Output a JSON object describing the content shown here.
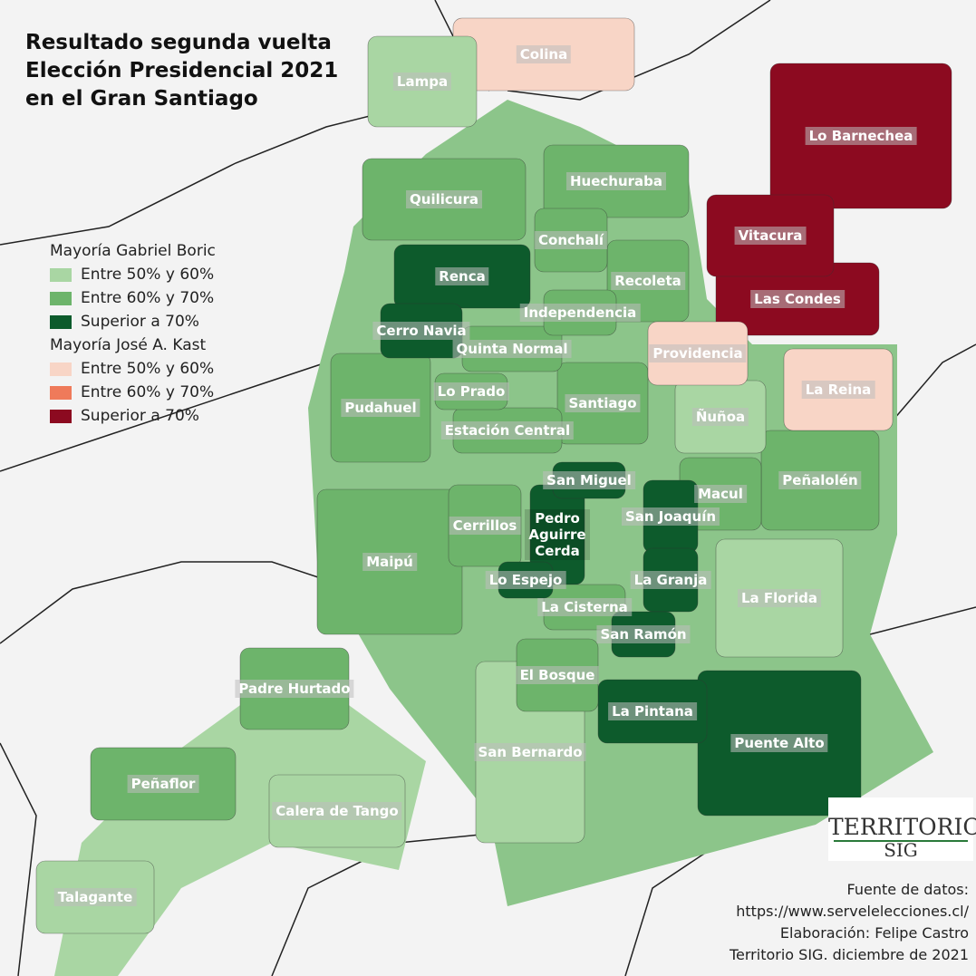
{
  "title_lines": [
    "Resultado segunda vuelta",
    "Elección Presidencial 2021",
    "en el Gran Santiago"
  ],
  "legend": {
    "groups": [
      {
        "heading": "Mayoría Gabriel Boric",
        "items": [
          {
            "label": "Entre 50% y 60%",
            "color": "#a9d6a3"
          },
          {
            "label": "Entre 60% y 70%",
            "color": "#6db46b"
          },
          {
            "label": "Superior a 70%",
            "color": "#0d5b2c"
          }
        ]
      },
      {
        "heading": "Mayoría José A. Kast",
        "items": [
          {
            "label": "Entre 50% y 60%",
            "color": "#f8d5c6"
          },
          {
            "label": "Entre 60% y 70%",
            "color": "#ef7a5a"
          },
          {
            "label": "Superior a 70%",
            "color": "#8c0a20"
          }
        ]
      }
    ]
  },
  "communes": [
    {
      "label": "Colina",
      "color": "#f8d5c6"
    },
    {
      "label": "Lampa",
      "color": "#a9d6a3"
    },
    {
      "label": "Lo Barnechea",
      "color": "#8c0a20"
    },
    {
      "label": "Huechuraba",
      "color": "#6db46b"
    },
    {
      "label": "Quilicura",
      "color": "#6db46b"
    },
    {
      "label": "Vitacura",
      "color": "#8c0a20"
    },
    {
      "label": "Conchalí",
      "color": "#6db46b"
    },
    {
      "label": "Renca",
      "color": "#0d5b2c"
    },
    {
      "label": "Recoleta",
      "color": "#6db46b"
    },
    {
      "label": "Las Condes",
      "color": "#8c0a20"
    },
    {
      "label": "Independencia",
      "color": "#6db46b"
    },
    {
      "label": "Cerro Navia",
      "color": "#0d5b2c"
    },
    {
      "label": "Quinta Normal",
      "color": "#6db46b"
    },
    {
      "label": "Providencia",
      "color": "#f8d5c6"
    },
    {
      "label": "La Reina",
      "color": "#f8d5c6"
    },
    {
      "label": "Pudahuel",
      "color": "#6db46b"
    },
    {
      "label": "Lo Prado",
      "color": "#6db46b"
    },
    {
      "label": "Santiago",
      "color": "#6db46b"
    },
    {
      "label": "Ñuñoa",
      "color": "#a9d6a3"
    },
    {
      "label": "Estación Central",
      "color": "#6db46b"
    },
    {
      "label": "San Miguel",
      "color": "#0d5b2c"
    },
    {
      "label": "Peñalolén",
      "color": "#6db46b"
    },
    {
      "label": "Macul",
      "color": "#6db46b"
    },
    {
      "label": "Pedro Aguirre Cerda",
      "color": "#0d5b2c"
    },
    {
      "label": "Cerrillos",
      "color": "#6db46b"
    },
    {
      "label": "San Joaquín",
      "color": "#0d5b2c"
    },
    {
      "label": "Maipú",
      "color": "#6db46b"
    },
    {
      "label": "Lo Espejo",
      "color": "#0d5b2c"
    },
    {
      "label": "La Granja",
      "color": "#0d5b2c"
    },
    {
      "label": "La Florida",
      "color": "#a9d6a3"
    },
    {
      "label": "La Cisterna",
      "color": "#6db46b"
    },
    {
      "label": "San Ramón",
      "color": "#0d5b2c"
    },
    {
      "label": "El Bosque",
      "color": "#6db46b"
    },
    {
      "label": "Padre Hurtado",
      "color": "#6db46b"
    },
    {
      "label": "La Pintana",
      "color": "#0d5b2c"
    },
    {
      "label": "San Bernardo",
      "color": "#a9d6a3"
    },
    {
      "label": "Puente Alto",
      "color": "#0d5b2c"
    },
    {
      "label": "Peñaflor",
      "color": "#6db46b"
    },
    {
      "label": "Calera de Tango",
      "color": "#a9d6a3"
    },
    {
      "label": "Talagante",
      "color": "#a9d6a3"
    }
  ],
  "logo": {
    "line1": "TERRITORIO",
    "line2": "SIG"
  },
  "credits": [
    "Fuente de datos:",
    "https://www.servelelecciones.cl/",
    "Elaboración: Felipe Castro",
    "Territorio SIG. diciembre de 2021"
  ]
}
